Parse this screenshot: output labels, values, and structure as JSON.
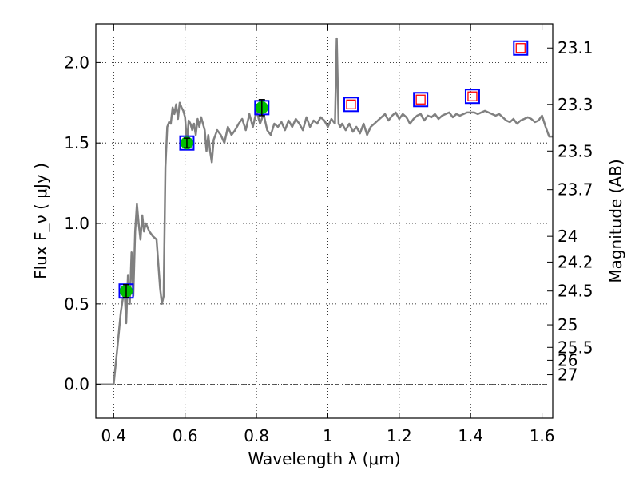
{
  "chart_data": {
    "type": "line",
    "xlabel": "Wavelength  λ (μm)",
    "ylabel": "Flux  F_ν  ( μJy )",
    "ylabel_right": "Magnitude (AB)",
    "xlim": [
      0.35,
      1.63
    ],
    "ylim": [
      -0.21,
      2.24
    ],
    "grid": true,
    "x_ticks": [
      0.4,
      0.6,
      0.8,
      1.0,
      1.2,
      1.4,
      1.6
    ],
    "x_tick_labels": [
      "0.4",
      "0.6",
      "0.8",
      "1",
      "1.2",
      "1.4",
      "1.6"
    ],
    "y_ticks": [
      0.0,
      0.5,
      1.0,
      1.5,
      2.0
    ],
    "y_tick_labels": [
      "0.0",
      "0.5",
      "1.0",
      "1.5",
      "2.0"
    ],
    "right_ticks": [
      {
        "label": "23.1",
        "flux": 2.09
      },
      {
        "label": "23.3",
        "flux": 1.74
      },
      {
        "label": "23.5",
        "flux": 1.45
      },
      {
        "label": "23.7",
        "flux": 1.21
      },
      {
        "label": "24",
        "flux": 0.92
      },
      {
        "label": "24.2",
        "flux": 0.76
      },
      {
        "label": "24.5",
        "flux": 0.58
      },
      {
        "label": "25",
        "flux": 0.37
      },
      {
        "label": "25.5",
        "flux": 0.23
      },
      {
        "label": "26",
        "flux": 0.15
      },
      {
        "label": "27",
        "flux": 0.06
      }
    ],
    "zero_line": {
      "y": 0.0,
      "style": "dash-dot"
    },
    "series": [
      {
        "kind": "model-spectrum",
        "color": "#808080",
        "x": [
          0.35,
          0.39,
          0.4,
          0.41,
          0.42,
          0.43,
          0.435,
          0.44,
          0.445,
          0.45,
          0.455,
          0.46,
          0.465,
          0.47,
          0.475,
          0.48,
          0.485,
          0.49,
          0.5,
          0.51,
          0.52,
          0.53,
          0.535,
          0.54,
          0.545,
          0.55,
          0.555,
          0.56,
          0.565,
          0.57,
          0.575,
          0.58,
          0.585,
          0.59,
          0.595,
          0.6,
          0.605,
          0.61,
          0.615,
          0.62,
          0.625,
          0.63,
          0.635,
          0.64,
          0.645,
          0.65,
          0.655,
          0.66,
          0.665,
          0.67,
          0.675,
          0.68,
          0.69,
          0.7,
          0.71,
          0.72,
          0.73,
          0.74,
          0.75,
          0.76,
          0.77,
          0.78,
          0.79,
          0.8,
          0.81,
          0.82,
          0.83,
          0.84,
          0.85,
          0.86,
          0.87,
          0.88,
          0.89,
          0.9,
          0.91,
          0.92,
          0.93,
          0.94,
          0.95,
          0.96,
          0.97,
          0.98,
          0.99,
          1.0,
          1.01,
          1.02,
          1.025,
          1.03,
          1.035,
          1.04,
          1.05,
          1.06,
          1.07,
          1.08,
          1.09,
          1.1,
          1.11,
          1.12,
          1.13,
          1.14,
          1.15,
          1.16,
          1.17,
          1.18,
          1.19,
          1.2,
          1.21,
          1.22,
          1.23,
          1.24,
          1.25,
          1.26,
          1.27,
          1.28,
          1.29,
          1.3,
          1.31,
          1.32,
          1.33,
          1.34,
          1.35,
          1.36,
          1.37,
          1.38,
          1.39,
          1.4,
          1.41,
          1.42,
          1.43,
          1.44,
          1.45,
          1.46,
          1.47,
          1.48,
          1.49,
          1.5,
          1.51,
          1.52,
          1.53,
          1.54,
          1.55,
          1.56,
          1.57,
          1.58,
          1.59,
          1.6,
          1.61,
          1.62,
          1.63
        ],
        "y": [
          0.0,
          0.0,
          0.0,
          0.22,
          0.45,
          0.6,
          0.38,
          0.68,
          0.5,
          0.82,
          0.55,
          0.95,
          1.12,
          1.0,
          0.9,
          1.05,
          0.95,
          1.0,
          0.95,
          0.92,
          0.9,
          0.6,
          0.5,
          0.55,
          1.35,
          1.6,
          1.63,
          1.62,
          1.72,
          1.68,
          1.74,
          1.65,
          1.75,
          1.72,
          1.7,
          1.66,
          1.5,
          1.64,
          1.62,
          1.58,
          1.62,
          1.55,
          1.65,
          1.6,
          1.66,
          1.62,
          1.58,
          1.45,
          1.55,
          1.45,
          1.38,
          1.52,
          1.58,
          1.55,
          1.5,
          1.6,
          1.55,
          1.58,
          1.62,
          1.65,
          1.58,
          1.68,
          1.6,
          1.7,
          1.62,
          1.68,
          1.58,
          1.55,
          1.62,
          1.6,
          1.63,
          1.58,
          1.64,
          1.6,
          1.65,
          1.62,
          1.58,
          1.66,
          1.6,
          1.64,
          1.62,
          1.66,
          1.64,
          1.6,
          1.65,
          1.62,
          2.15,
          1.62,
          1.6,
          1.62,
          1.58,
          1.62,
          1.57,
          1.6,
          1.56,
          1.62,
          1.55,
          1.6,
          1.62,
          1.64,
          1.66,
          1.68,
          1.64,
          1.67,
          1.69,
          1.65,
          1.68,
          1.66,
          1.62,
          1.65,
          1.67,
          1.68,
          1.64,
          1.67,
          1.66,
          1.68,
          1.65,
          1.67,
          1.68,
          1.69,
          1.66,
          1.68,
          1.67,
          1.68,
          1.69,
          1.69,
          1.69,
          1.68,
          1.69,
          1.7,
          1.69,
          1.68,
          1.67,
          1.68,
          1.66,
          1.64,
          1.63,
          1.65,
          1.62,
          1.64,
          1.65,
          1.66,
          1.65,
          1.63,
          1.64,
          1.67,
          1.6,
          1.54,
          1.54
        ]
      },
      {
        "kind": "model-photometry",
        "marker": "blue-square",
        "x": [
          0.435,
          0.605,
          0.815,
          1.065,
          1.26,
          1.405,
          1.54
        ],
        "y": [
          0.58,
          1.5,
          1.72,
          1.74,
          1.77,
          1.79,
          2.09
        ]
      },
      {
        "kind": "observed-detections",
        "marker": "green-circle",
        "x": [
          0.435,
          0.605,
          0.815
        ],
        "y": [
          0.58,
          1.5,
          1.72
        ],
        "err": [
          0.04,
          0.03,
          0.05
        ]
      },
      {
        "kind": "upper-limits",
        "marker": "red-open-square",
        "x": [
          1.065,
          1.26,
          1.405,
          1.54
        ],
        "y": [
          1.74,
          1.77,
          1.79,
          2.09
        ]
      }
    ],
    "colors": {
      "spectrum": "#808080",
      "model_marker": "#0000ff",
      "detection": "#00c000",
      "upper_limit": "#ff0000",
      "grid": "#000000"
    }
  }
}
